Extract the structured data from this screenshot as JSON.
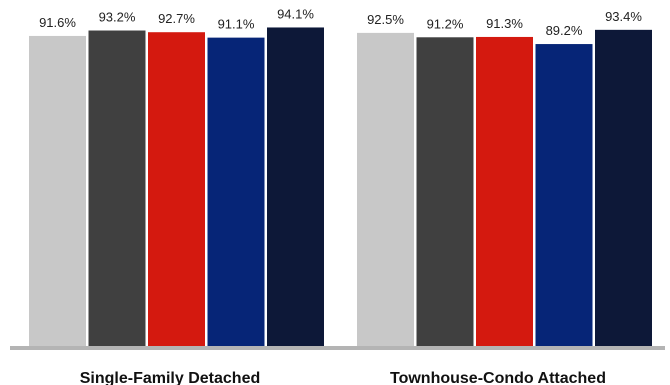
{
  "chart_data": {
    "type": "bar",
    "categories": [
      "Single-Family Detached",
      "Townhouse-Condo Attached"
    ],
    "series": [
      {
        "values": [
          91.6,
          92.5
        ],
        "color": "#c8c8c8"
      },
      {
        "values": [
          93.2,
          91.2
        ],
        "color": "#404040"
      },
      {
        "values": [
          92.7,
          91.3
        ],
        "color": "#d4190f"
      },
      {
        "values": [
          91.1,
          89.2
        ],
        "color": "#062577"
      },
      {
        "values": [
          94.1,
          93.4
        ],
        "color": "#0d1838"
      }
    ],
    "data_labels": [
      [
        "91.6%",
        "93.2%",
        "92.7%",
        "91.1%",
        "94.1%"
      ],
      [
        "92.5%",
        "91.2%",
        "91.3%",
        "89.2%",
        "93.4%"
      ]
    ],
    "title": "",
    "xlabel": "",
    "ylabel": "",
    "ylim": [
      0,
      100
    ],
    "grid": false,
    "legend": "none",
    "baseline_color": "#b4b4b4"
  }
}
